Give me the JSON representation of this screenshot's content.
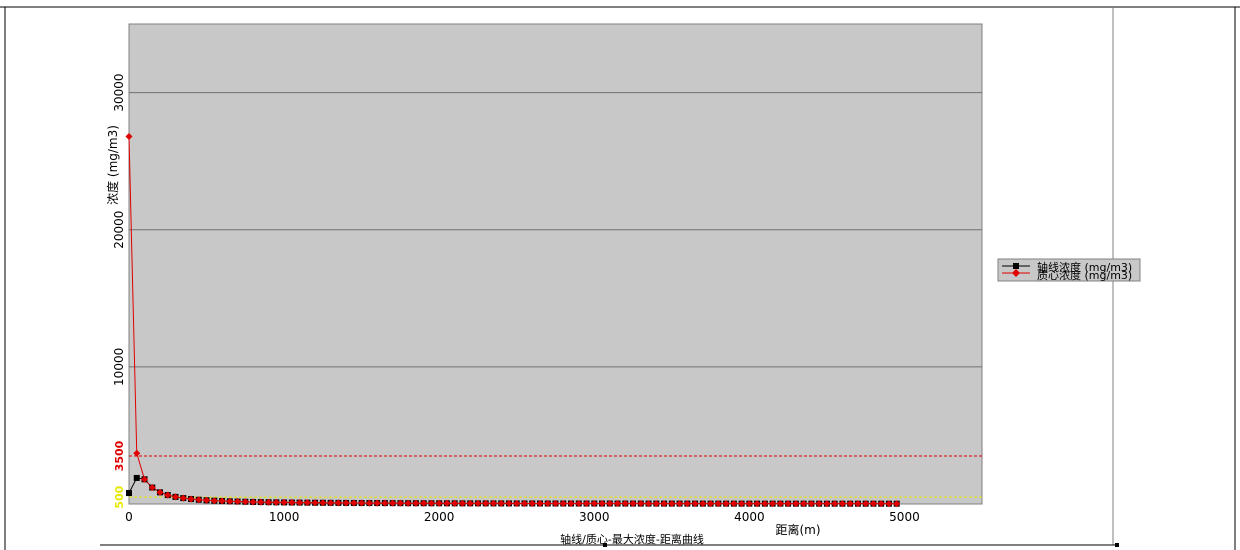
{
  "chart_data": {
    "type": "line",
    "title": "轴线/质心-最大浓度-距离曲线",
    "xlabel": "距离(m)",
    "ylabel": "浓度 (mg/m3)",
    "xlim": [
      0,
      5500
    ],
    "ylim": [
      0,
      35000
    ],
    "x_ticks": [
      0,
      1000,
      2000,
      3000,
      4000,
      5000
    ],
    "y_ticks": [
      10000,
      20000,
      30000
    ],
    "grid": "horizontal",
    "legend_position": "right",
    "plot_background": "#c8c8c8",
    "reference_lines": [
      {
        "label": "3500",
        "value": 3500,
        "color": "#e00000"
      },
      {
        "label": "500",
        "value": 500,
        "color": "#e8e800"
      }
    ],
    "series": [
      {
        "name": "轴线浓度 (mg/m3)",
        "color": "#000000",
        "marker": "square",
        "x": [
          0,
          50,
          100,
          150,
          200,
          250,
          300,
          350,
          400,
          450,
          500,
          550,
          600,
          650,
          700,
          750,
          800,
          850,
          900,
          950,
          1000,
          1050,
          1100,
          1150,
          1200,
          1250,
          1300,
          1350,
          1400,
          1450,
          1500,
          1550,
          1600,
          1650,
          1700,
          1750,
          1800,
          1850,
          1900,
          1950,
          2000,
          2050,
          2100,
          2150,
          2200,
          2250,
          2300,
          2350,
          2400,
          2450,
          2500,
          2550,
          2600,
          2650,
          2700,
          2750,
          2800,
          2850,
          2900,
          2950,
          3000,
          3050,
          3100,
          3150,
          3200,
          3250,
          3300,
          3350,
          3400,
          3450,
          3500,
          3550,
          3600,
          3650,
          3700,
          3750,
          3800,
          3850,
          3900,
          3950,
          4000,
          4050,
          4100,
          4150,
          4200,
          4250,
          4300,
          4350,
          4400,
          4450,
          4500,
          4550,
          4600,
          4650,
          4700,
          4750,
          4800,
          4850,
          4900,
          4950
        ],
        "values": [
          800,
          1900,
          1800,
          1200,
          850,
          650,
          520,
          430,
          360,
          310,
          270,
          240,
          215,
          195,
          178,
          163,
          150,
          140,
          130,
          122,
          115,
          108,
          102,
          97,
          92,
          88,
          84,
          80,
          77,
          74,
          71,
          68,
          66,
          64,
          62,
          60,
          58,
          56,
          55,
          53,
          52,
          51,
          49,
          48,
          47,
          46,
          45,
          44,
          43,
          42,
          41,
          41,
          40,
          39,
          38,
          38,
          37,
          36,
          36,
          35,
          35,
          34,
          34,
          33,
          33,
          32,
          32,
          31,
          31,
          30,
          30,
          30,
          29,
          29,
          29,
          28,
          28,
          28,
          27,
          27,
          27,
          26,
          26,
          26,
          26,
          25,
          25,
          25,
          25,
          24,
          24,
          24,
          24,
          23,
          23,
          23,
          23,
          23,
          22,
          22
        ]
      },
      {
        "name": "质心浓度 (mg/m3)",
        "color": "#e00000",
        "marker": "diamond",
        "x": [
          0,
          50,
          100,
          150,
          200,
          250,
          300,
          350,
          400,
          450,
          500,
          550,
          600,
          650,
          700,
          750,
          800,
          850,
          900,
          950,
          1000,
          1050,
          1100,
          1150,
          1200,
          1250,
          1300,
          1350,
          1400,
          1450,
          1500,
          1550,
          1600,
          1650,
          1700,
          1750,
          1800,
          1850,
          1900,
          1950,
          2000,
          2050,
          2100,
          2150,
          2200,
          2250,
          2300,
          2350,
          2400,
          2450,
          2500,
          2550,
          2600,
          2650,
          2700,
          2750,
          2800,
          2850,
          2900,
          2950,
          3000,
          3050,
          3100,
          3150,
          3200,
          3250,
          3300,
          3350,
          3400,
          3450,
          3500,
          3550,
          3600,
          3650,
          3700,
          3750,
          3800,
          3850,
          3900,
          3950,
          4000,
          4050,
          4100,
          4150,
          4200,
          4250,
          4300,
          4350,
          4400,
          4450,
          4500,
          4550,
          4600,
          4650,
          4700,
          4750,
          4800,
          4850,
          4900,
          4950
        ],
        "values": [
          26800,
          3700,
          1800,
          1200,
          850,
          650,
          520,
          430,
          360,
          310,
          270,
          240,
          215,
          195,
          178,
          163,
          150,
          140,
          130,
          122,
          115,
          108,
          102,
          97,
          92,
          88,
          84,
          80,
          77,
          74,
          71,
          68,
          66,
          64,
          62,
          60,
          58,
          56,
          55,
          53,
          52,
          51,
          49,
          48,
          47,
          46,
          45,
          44,
          43,
          42,
          41,
          41,
          40,
          39,
          38,
          38,
          37,
          36,
          36,
          35,
          35,
          34,
          34,
          33,
          33,
          32,
          32,
          31,
          31,
          30,
          30,
          30,
          29,
          29,
          29,
          28,
          28,
          28,
          27,
          27,
          27,
          26,
          26,
          26,
          26,
          25,
          25,
          25,
          25,
          24,
          24,
          24,
          24,
          23,
          23,
          23,
          23,
          23,
          22,
          22
        ]
      }
    ]
  }
}
